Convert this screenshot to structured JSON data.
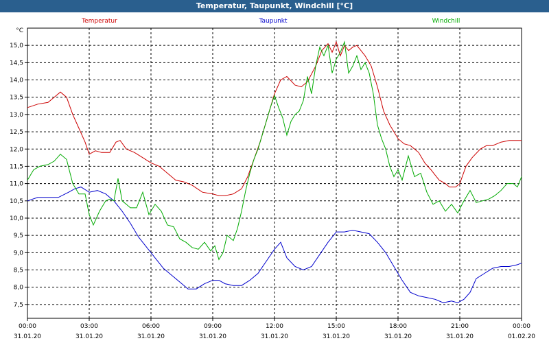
{
  "window": {
    "title": "Temperatur, Taupunkt, Windchill [°C]"
  },
  "chart_data": {
    "type": "line",
    "title": "Temperatur, Taupunkt, Windchill [°C]",
    "ylabel": "°C",
    "ylim": [
      7.1,
      15.5
    ],
    "yticks": [
      7.5,
      8.0,
      8.5,
      9.0,
      9.5,
      10.0,
      10.5,
      11.0,
      11.5,
      12.0,
      12.5,
      13.0,
      13.5,
      14.0,
      14.5,
      15.0
    ],
    "ytick_labels": [
      "7,5",
      "8,0",
      "8,5",
      "9,0",
      "9,5",
      "10,0",
      "10,5",
      "11,0",
      "11,5",
      "12,0",
      "12,5",
      "13,0",
      "13,5",
      "14,0",
      "14,5",
      "15,0"
    ],
    "xlim": [
      0,
      24
    ],
    "xticks": [
      0,
      3,
      6,
      9,
      12,
      15,
      18,
      21,
      24
    ],
    "xtick_time": [
      "00:00",
      "03:00",
      "06:00",
      "09:00",
      "12:00",
      "15:00",
      "18:00",
      "21:00",
      "00:00"
    ],
    "xtick_date": [
      "31.01.20",
      "31.01.20",
      "31.01.20",
      "31.01.20",
      "31.01.20",
      "31.01.20",
      "31.01.20",
      "31.01.20",
      "01.02.20"
    ],
    "grid": true,
    "legend_position": "top",
    "colors": {
      "temperatur": "#cc0000",
      "taupunkt": "#0000cc",
      "windchill": "#00aa00",
      "titlebar": "#2a5f8e"
    },
    "series": [
      {
        "name": "Temperatur",
        "x": [
          0,
          0.5,
          1,
          1.3,
          1.6,
          1.9,
          2.2,
          2.5,
          2.8,
          3.0,
          3.3,
          3.6,
          4.0,
          4.3,
          4.5,
          4.8,
          5.2,
          5.6,
          6.0,
          6.4,
          6.8,
          7.2,
          7.6,
          8.0,
          8.5,
          9.0,
          9.3,
          9.6,
          10.0,
          10.4,
          10.7,
          11.0,
          11.3,
          11.6,
          12.0,
          12.3,
          12.6,
          13.0,
          13.3,
          13.6,
          14.0,
          14.3,
          14.6,
          14.8,
          15.0,
          15.2,
          15.4,
          15.6,
          15.8,
          16.0,
          16.2,
          16.4,
          16.7,
          17.0,
          17.3,
          17.6,
          18.0,
          18.3,
          18.6,
          19.0,
          19.3,
          19.6,
          20.0,
          20.3,
          20.5,
          20.8,
          21.0,
          21.3,
          21.6,
          22.0,
          22.3,
          22.6,
          23.0,
          23.4,
          23.8,
          24.0
        ],
        "values": [
          13.2,
          13.3,
          13.35,
          13.5,
          13.65,
          13.5,
          13.0,
          12.6,
          12.2,
          11.85,
          11.95,
          11.9,
          11.9,
          12.2,
          12.25,
          12.0,
          11.9,
          11.75,
          11.6,
          11.5,
          11.3,
          11.1,
          11.05,
          10.95,
          10.75,
          10.7,
          10.65,
          10.65,
          10.7,
          10.85,
          11.2,
          11.7,
          12.2,
          12.8,
          13.6,
          14.0,
          14.1,
          13.85,
          13.8,
          13.95,
          14.4,
          14.85,
          15.05,
          14.8,
          15.1,
          14.7,
          15.0,
          14.85,
          14.95,
          15.0,
          14.85,
          14.7,
          14.4,
          13.8,
          13.1,
          12.7,
          12.3,
          12.15,
          12.1,
          11.9,
          11.6,
          11.4,
          11.1,
          11.0,
          10.9,
          10.9,
          11.0,
          11.5,
          11.75,
          12.0,
          12.1,
          12.1,
          12.2,
          12.25,
          12.25,
          12.25
        ]
      },
      {
        "name": "Taupunkt",
        "x": [
          0,
          0.5,
          1,
          1.5,
          2.0,
          2.3,
          2.6,
          3.0,
          3.4,
          3.8,
          4.2,
          4.6,
          5.0,
          5.4,
          5.8,
          6.2,
          6.6,
          7.0,
          7.4,
          7.8,
          8.2,
          8.6,
          9.0,
          9.3,
          9.6,
          10.0,
          10.4,
          10.8,
          11.2,
          11.6,
          12.0,
          12.3,
          12.6,
          13.0,
          13.4,
          13.8,
          14.2,
          14.6,
          15.0,
          15.4,
          15.8,
          16.2,
          16.6,
          17.0,
          17.4,
          17.8,
          18.2,
          18.6,
          19.0,
          19.4,
          19.8,
          20.2,
          20.6,
          20.9,
          21.2,
          21.5,
          21.8,
          22.2,
          22.6,
          23.0,
          23.4,
          23.8,
          24.0
        ],
        "values": [
          10.5,
          10.6,
          10.6,
          10.6,
          10.75,
          10.85,
          10.9,
          10.75,
          10.8,
          10.7,
          10.5,
          10.2,
          9.85,
          9.45,
          9.15,
          8.85,
          8.55,
          8.35,
          8.15,
          7.95,
          7.95,
          8.1,
          8.2,
          8.2,
          8.1,
          8.05,
          8.05,
          8.2,
          8.4,
          8.75,
          9.1,
          9.3,
          8.85,
          8.6,
          8.5,
          8.6,
          8.95,
          9.3,
          9.6,
          9.6,
          9.65,
          9.6,
          9.55,
          9.3,
          9.0,
          8.6,
          8.2,
          7.85,
          7.75,
          7.7,
          7.65,
          7.55,
          7.6,
          7.55,
          7.65,
          7.85,
          8.25,
          8.4,
          8.55,
          8.6,
          8.6,
          8.65,
          8.7
        ]
      },
      {
        "name": "Windchill",
        "x": [
          0,
          0.3,
          0.6,
          1.0,
          1.3,
          1.6,
          1.9,
          2.2,
          2.5,
          2.8,
          3.0,
          3.2,
          3.5,
          3.8,
          4.0,
          4.2,
          4.4,
          4.6,
          4.8,
          5.0,
          5.3,
          5.6,
          5.9,
          6.2,
          6.5,
          6.8,
          7.1,
          7.4,
          7.7,
          8.0,
          8.3,
          8.6,
          8.9,
          9.1,
          9.3,
          9.5,
          9.7,
          10.0,
          10.2,
          10.4,
          10.6,
          10.8,
          11.0,
          11.2,
          11.4,
          11.6,
          11.8,
          12.0,
          12.2,
          12.4,
          12.6,
          12.8,
          13.0,
          13.2,
          13.4,
          13.6,
          13.8,
          14.0,
          14.2,
          14.4,
          14.6,
          14.8,
          15.0,
          15.2,
          15.4,
          15.6,
          15.8,
          16.0,
          16.2,
          16.4,
          16.6,
          16.8,
          17.0,
          17.2,
          17.4,
          17.6,
          17.8,
          18.0,
          18.2,
          18.5,
          18.8,
          19.1,
          19.4,
          19.7,
          20.0,
          20.3,
          20.6,
          20.9,
          21.2,
          21.5,
          21.8,
          22.1,
          22.4,
          22.7,
          23.0,
          23.3,
          23.6,
          23.8,
          24.0
        ],
        "values": [
          11.1,
          11.4,
          11.5,
          11.55,
          11.65,
          11.85,
          11.7,
          11.0,
          10.7,
          10.7,
          10.1,
          9.8,
          10.2,
          10.5,
          10.55,
          10.5,
          11.15,
          10.5,
          10.4,
          10.3,
          10.3,
          10.75,
          10.1,
          10.4,
          10.2,
          9.8,
          9.75,
          9.4,
          9.3,
          9.15,
          9.1,
          9.3,
          9.05,
          9.2,
          8.8,
          9.0,
          9.5,
          9.35,
          9.7,
          10.2,
          10.8,
          11.3,
          11.7,
          12.0,
          12.4,
          12.8,
          13.2,
          13.55,
          13.2,
          12.9,
          12.4,
          12.8,
          13.0,
          13.1,
          13.4,
          14.1,
          13.6,
          14.4,
          14.95,
          14.7,
          15.0,
          14.2,
          14.6,
          14.8,
          15.1,
          14.2,
          14.4,
          14.7,
          14.3,
          14.5,
          14.2,
          13.6,
          12.7,
          12.3,
          12.0,
          11.5,
          11.2,
          11.4,
          11.1,
          11.8,
          11.2,
          11.3,
          10.75,
          10.4,
          10.5,
          10.2,
          10.4,
          10.15,
          10.5,
          10.8,
          10.45,
          10.5,
          10.55,
          10.65,
          10.8,
          11.0,
          11.0,
          10.9,
          11.2
        ]
      }
    ]
  }
}
